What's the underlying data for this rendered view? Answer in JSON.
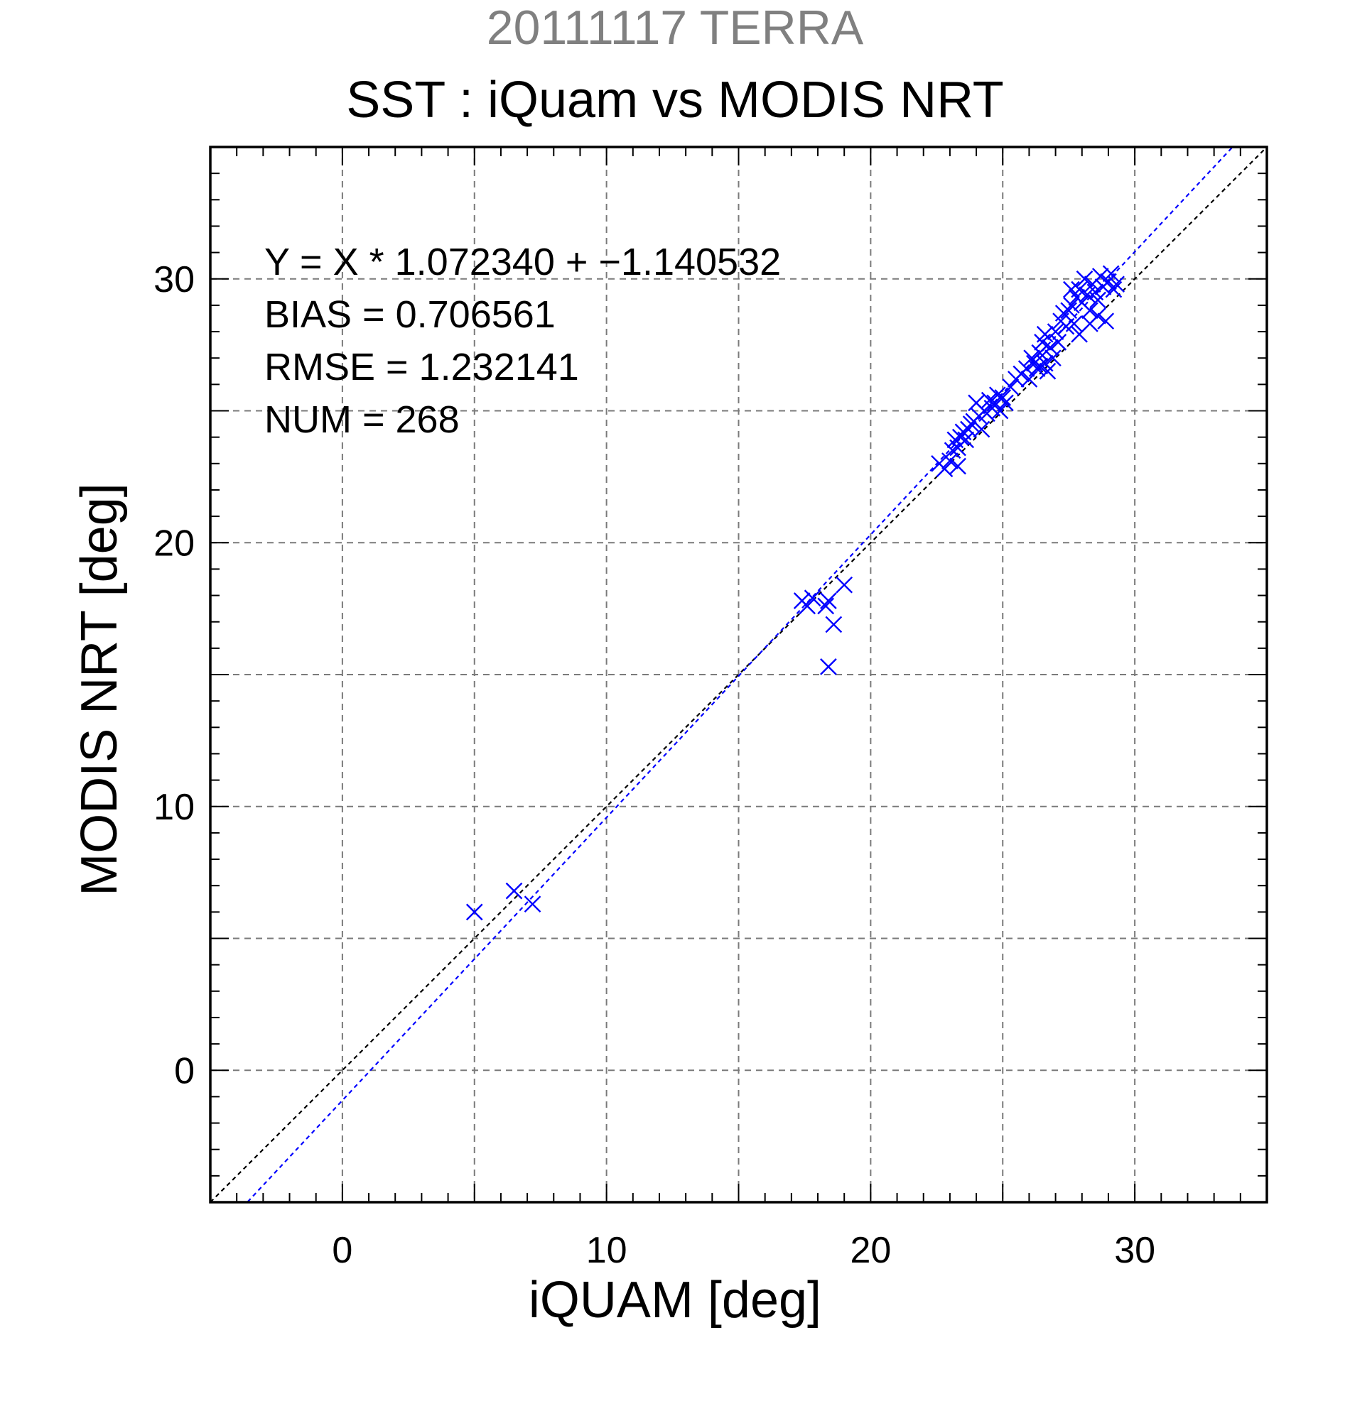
{
  "chart_data": {
    "type": "scatter",
    "title_date": "20111117 TERRA",
    "title": "SST : iQuam vs MODIS NRT",
    "xlabel": "iQUAM [deg]",
    "ylabel": "MODIS NRT [deg]",
    "xlim": [
      -5,
      35
    ],
    "ylim": [
      -5,
      35
    ],
    "xticks": [
      0,
      10,
      20,
      30
    ],
    "yticks": [
      0,
      10,
      20,
      30
    ],
    "grid": true,
    "stats": {
      "equation": "Y = X * 1.072340 + −1.140532",
      "bias": "BIAS = 0.706561",
      "rmse": "RMSE = 1.232141",
      "num": "NUM = 268"
    },
    "lines": [
      {
        "kind": "one-to-one",
        "slope": 1.0,
        "intercept": 0.0,
        "color": "#000000"
      },
      {
        "kind": "regression",
        "slope": 1.07234,
        "intercept": -1.140532,
        "color": "#0000ff"
      }
    ],
    "series": [
      {
        "marker": "x",
        "color": "#0000ff",
        "points": [
          [
            5.0,
            6.0
          ],
          [
            6.5,
            6.8
          ],
          [
            7.2,
            6.3
          ],
          [
            17.4,
            17.8
          ],
          [
            17.6,
            17.6
          ],
          [
            17.8,
            17.9
          ],
          [
            18.3,
            17.6
          ],
          [
            18.4,
            17.8
          ],
          [
            18.6,
            16.9
          ],
          [
            18.4,
            15.3
          ],
          [
            19.0,
            18.4
          ],
          [
            22.6,
            23.0
          ],
          [
            22.8,
            22.8
          ],
          [
            23.0,
            23.1
          ],
          [
            23.1,
            23.5
          ],
          [
            23.2,
            23.9
          ],
          [
            23.3,
            23.6
          ],
          [
            23.4,
            24.0
          ],
          [
            23.5,
            24.2
          ],
          [
            23.3,
            22.9
          ],
          [
            23.6,
            23.9
          ],
          [
            23.7,
            24.3
          ],
          [
            23.8,
            24.5
          ],
          [
            23.9,
            24.6
          ],
          [
            24.0,
            25.3
          ],
          [
            24.1,
            24.8
          ],
          [
            24.2,
            24.3
          ],
          [
            24.3,
            25.0
          ],
          [
            24.4,
            24.9
          ],
          [
            24.5,
            25.4
          ],
          [
            24.6,
            25.1
          ],
          [
            24.7,
            25.3
          ],
          [
            24.8,
            25.6
          ],
          [
            24.9,
            25.0
          ],
          [
            25.0,
            25.5
          ],
          [
            25.1,
            25.3
          ],
          [
            25.3,
            25.9
          ],
          [
            25.5,
            26.2
          ],
          [
            25.7,
            26.4
          ],
          [
            25.9,
            26.6
          ],
          [
            26.0,
            26.2
          ],
          [
            26.1,
            27.0
          ],
          [
            26.2,
            26.8
          ],
          [
            26.3,
            26.6
          ],
          [
            26.4,
            27.2
          ],
          [
            26.5,
            27.6
          ],
          [
            26.6,
            27.9
          ],
          [
            26.7,
            26.5
          ],
          [
            26.8,
            27.4
          ],
          [
            26.9,
            27.0
          ],
          [
            27.0,
            28.0
          ],
          [
            27.1,
            27.6
          ],
          [
            27.2,
            28.4
          ],
          [
            27.3,
            28.7
          ],
          [
            27.4,
            28.2
          ],
          [
            27.5,
            28.8
          ],
          [
            27.6,
            29.0
          ],
          [
            27.7,
            28.3
          ],
          [
            27.8,
            29.3
          ],
          [
            27.9,
            29.6
          ],
          [
            28.0,
            29.1
          ],
          [
            28.1,
            30.0
          ],
          [
            28.2,
            29.4
          ],
          [
            28.3,
            28.8
          ],
          [
            28.4,
            29.8
          ],
          [
            28.5,
            29.5
          ],
          [
            28.6,
            29.2
          ],
          [
            28.7,
            30.1
          ],
          [
            28.8,
            29.7
          ],
          [
            28.9,
            28.4
          ],
          [
            29.0,
            29.9
          ],
          [
            29.1,
            30.2
          ],
          [
            29.2,
            29.6
          ],
          [
            29.3,
            29.8
          ],
          [
            27.6,
            29.6
          ],
          [
            27.9,
            27.9
          ],
          [
            28.3,
            28.3
          ],
          [
            26.6,
            26.8
          ],
          [
            26.4,
            26.7
          ],
          [
            28.6,
            28.6
          ]
        ]
      }
    ]
  }
}
